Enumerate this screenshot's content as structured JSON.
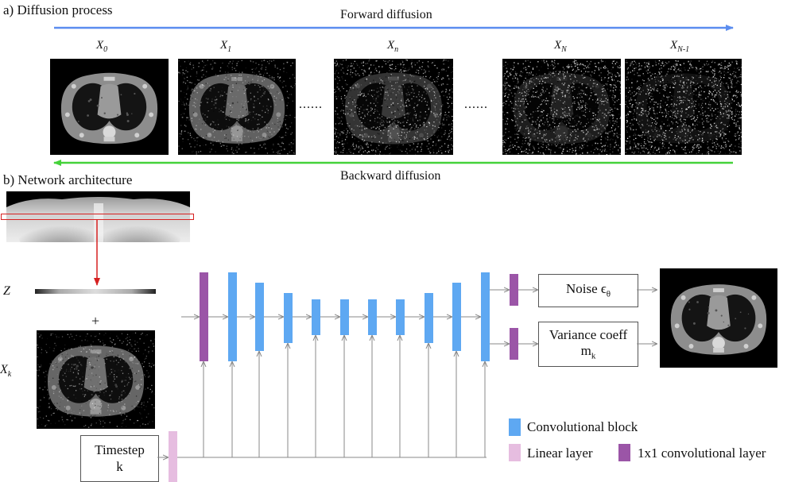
{
  "sections": {
    "a_title": "a) Diffusion process",
    "b_title": "b) Network architecture"
  },
  "arrows": {
    "forward_label": "Forward diffusion",
    "backward_label": "Backward diffusion",
    "forward_color": "#5b8def",
    "backward_color": "#45d23a"
  },
  "diffusion_frames": [
    {
      "base": "X",
      "sub": "0"
    },
    {
      "base": "X",
      "sub": "1"
    },
    {
      "base": "X",
      "sub": "n"
    },
    {
      "base": "X",
      "sub": "N"
    },
    {
      "base": "X",
      "sub": "N-1"
    }
  ],
  "ellipsis": "......",
  "network": {
    "z_label": "Z",
    "plus": "+",
    "xk_base": "X",
    "xk_sub": "k",
    "timestep_line1": "Timestep",
    "timestep_line2": "k",
    "noise_label": "Noise ϵ",
    "noise_sub": "θ",
    "variance_line1": "Variance coeff",
    "variance_line2_base": "m",
    "variance_line2_sub": "k"
  },
  "legend": [
    {
      "label": "Convolutional block",
      "color": "#5ea8f2"
    },
    {
      "label": "Linear layer",
      "color": "#e6bde0"
    },
    {
      "label": "1x1 convolutional layer",
      "color": "#9b55a7"
    }
  ],
  "colors": {
    "conv": "#5ea8f2",
    "one_by_one": "#9b55a7",
    "linear": "#e6bde0",
    "highlight": "#d62020",
    "connector": "#888888"
  }
}
